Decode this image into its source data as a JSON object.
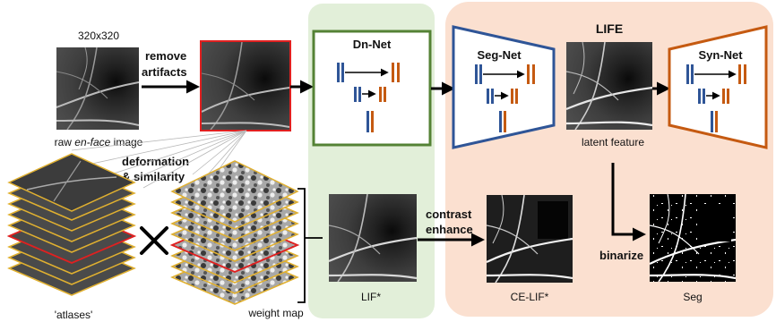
{
  "labels": {
    "size": "320x320",
    "raw_pre": "raw ",
    "raw_italic": "en-face",
    "raw_post": " image",
    "remove_line1": "remove",
    "remove_line2": "artifacts",
    "deform_line1": "deformation",
    "deform_line2": "& similarity",
    "atlases": "'atlases'",
    "weight_map": "weight map",
    "lif": "LIF*",
    "contrast_line1": "contrast",
    "contrast_line2": "enhance",
    "ce_lif": "CE-LIF*",
    "latent": "latent feature",
    "binarize": "binarize",
    "seg": "Seg"
  },
  "nets": {
    "dn": "Dn-Net",
    "seg": "Seg-Net",
    "syn": "Syn-Net",
    "life": "LIFE"
  },
  "colors": {
    "green_panel": "#e2efd9",
    "peach_panel": "#fbe0d0",
    "dn_border": "#548235",
    "seg_border": "#2f5597",
    "syn_border": "#c55a11",
    "red_border": "#e02020",
    "gold_border": "#e0b030",
    "blue_bar": "#2f5597",
    "orange_bar": "#c55a11"
  }
}
